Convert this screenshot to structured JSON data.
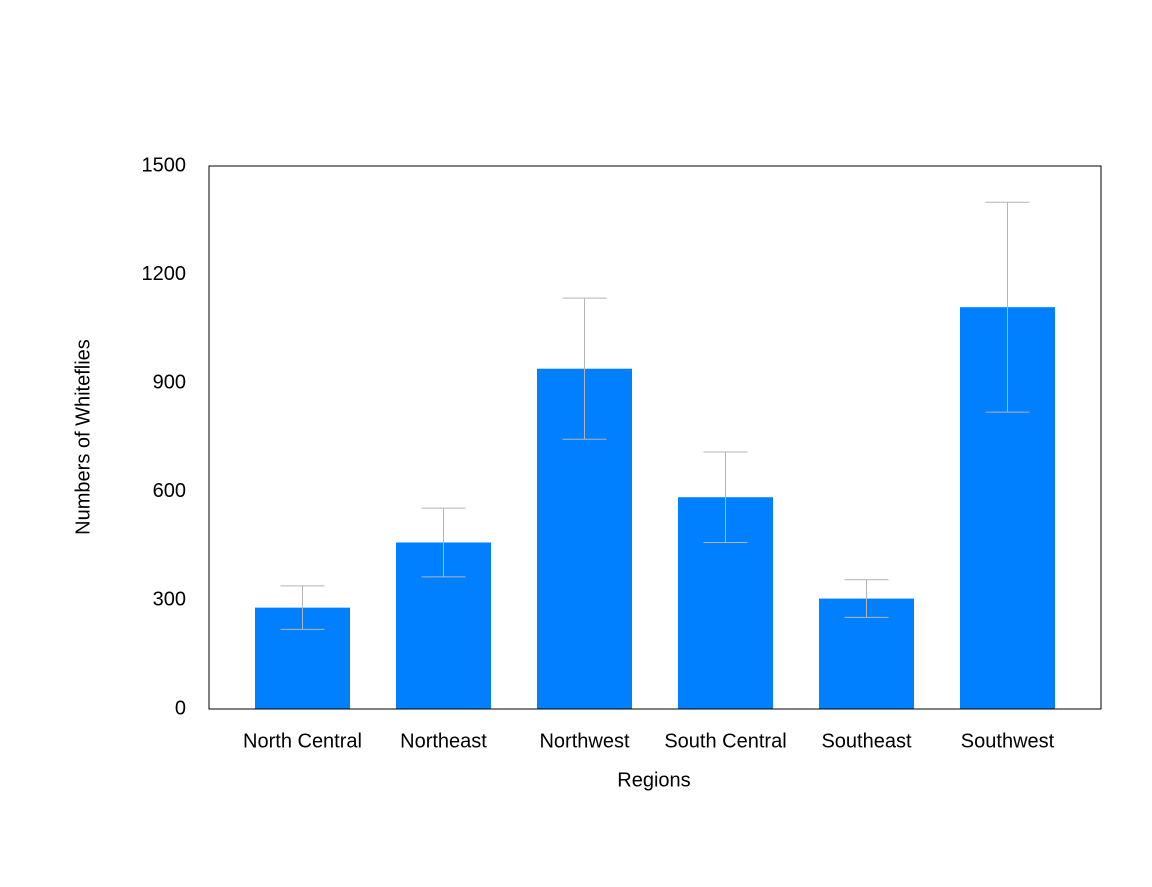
{
  "chart_data": {
    "type": "bar",
    "x_label": "Regions",
    "y_label": "Numbers of Whiteflies",
    "categories": [
      "North Central",
      "Northeast",
      "Northwest",
      "South Central",
      "Southeast",
      "Southwest"
    ],
    "values": [
      280,
      460,
      940,
      585,
      305,
      1110
    ],
    "errors": [
      60,
      95,
      195,
      125,
      52,
      290
    ],
    "color": "#0080ff",
    "error_color": "#b4b4b4",
    "ylim": [
      0,
      1500
    ],
    "yticks": [
      0,
      300,
      600,
      900,
      1200,
      1500
    ],
    "grid": false
  }
}
